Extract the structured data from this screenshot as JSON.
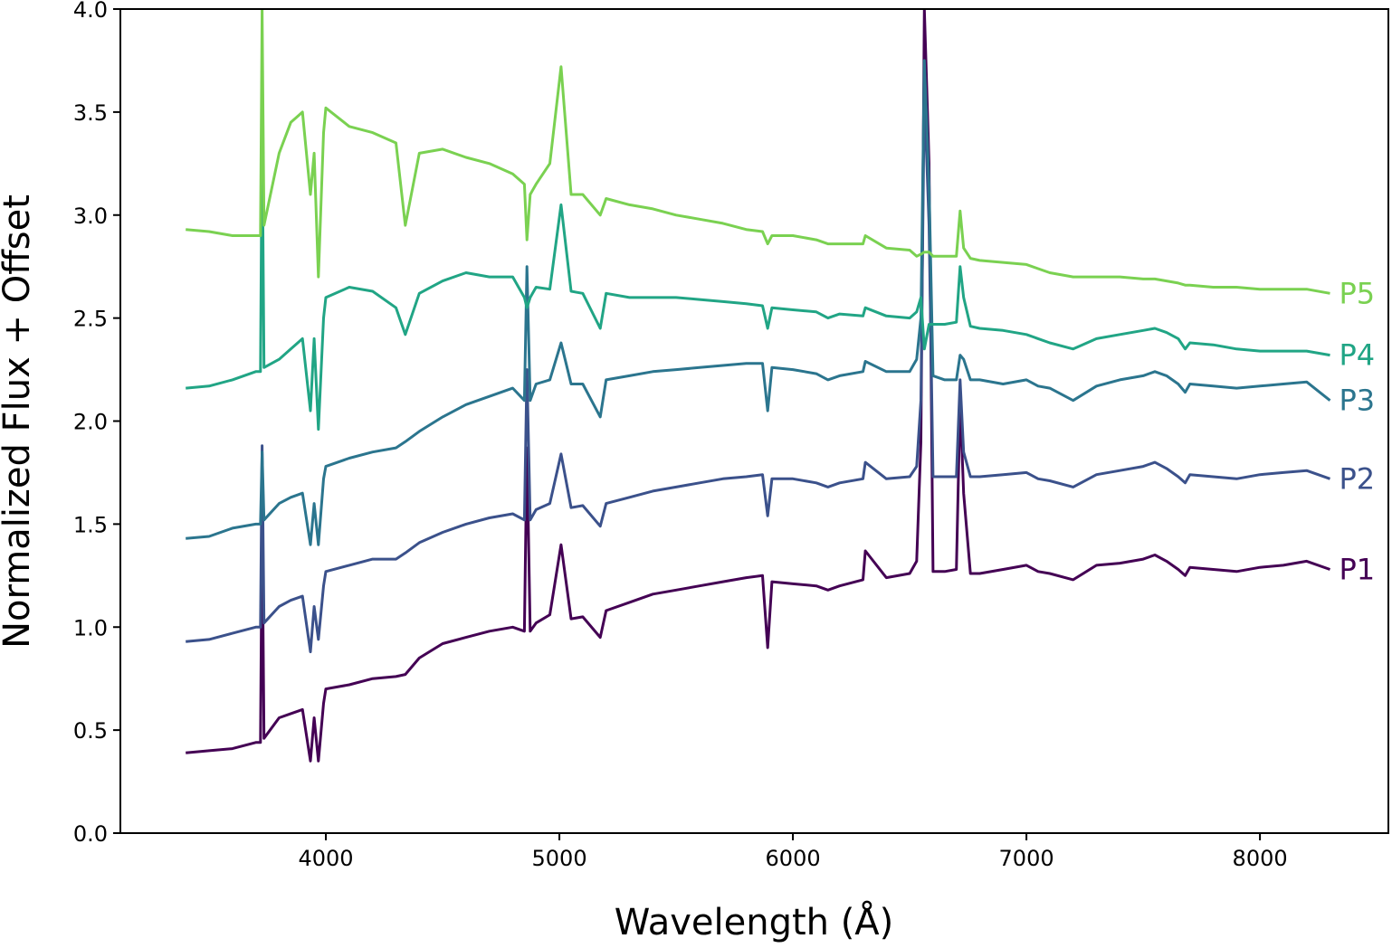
{
  "chart_data": {
    "type": "line",
    "title": "",
    "xlabel": "Wavelength (Å)",
    "ylabel": "Normalized Flux + Offset",
    "xlim": [
      3120,
      8550
    ],
    "ylim": [
      0.0,
      4.0
    ],
    "x_ticks": [
      4000,
      5000,
      6000,
      7000,
      8000
    ],
    "x_tick_labels": [
      "4000",
      "5000",
      "6000",
      "7000",
      "8000"
    ],
    "y_ticks": [
      0.0,
      0.5,
      1.0,
      1.5,
      2.0,
      2.5,
      3.0,
      3.5,
      4.0
    ],
    "y_tick_labels": [
      "0.0",
      "0.5",
      "1.0",
      "1.5",
      "2.0",
      "2.5",
      "3.0",
      "3.5",
      "4.0"
    ],
    "grid": false,
    "series": [
      {
        "name": "P1",
        "color": "#440154",
        "x": [
          3400,
          3500,
          3600,
          3700,
          3720,
          3727,
          3735,
          3800,
          3850,
          3900,
          3934,
          3950,
          3968,
          3990,
          4000,
          4100,
          4200,
          4300,
          4340,
          4400,
          4500,
          4600,
          4700,
          4800,
          4850,
          4861,
          4875,
          4900,
          4959,
          5007,
          5050,
          5100,
          5175,
          5200,
          5300,
          5400,
          5500,
          5600,
          5700,
          5800,
          5870,
          5892,
          5910,
          6000,
          6100,
          6150,
          6200,
          6300,
          6310,
          6400,
          6500,
          6530,
          6548,
          6563,
          6583,
          6600,
          6650,
          6700,
          6716,
          6731,
          6760,
          6800,
          6900,
          7000,
          7050,
          7100,
          7200,
          7300,
          7400,
          7500,
          7550,
          7600,
          7650,
          7680,
          7700,
          7800,
          7900,
          8000,
          8100,
          8200,
          8300
        ],
        "values": [
          0.39,
          0.4,
          0.41,
          0.44,
          0.44,
          1.52,
          0.46,
          0.56,
          0.58,
          0.6,
          0.35,
          0.56,
          0.35,
          0.63,
          0.7,
          0.72,
          0.75,
          0.76,
          0.77,
          0.85,
          0.92,
          0.95,
          0.98,
          1.0,
          0.98,
          1.87,
          0.98,
          1.02,
          1.06,
          1.4,
          1.04,
          1.05,
          0.95,
          1.08,
          1.12,
          1.16,
          1.18,
          1.2,
          1.22,
          1.24,
          1.25,
          0.9,
          1.22,
          1.21,
          1.2,
          1.18,
          1.2,
          1.23,
          1.37,
          1.24,
          1.26,
          1.32,
          1.9,
          4.0,
          3.25,
          1.27,
          1.27,
          1.28,
          2.1,
          1.65,
          1.26,
          1.26,
          1.28,
          1.3,
          1.27,
          1.26,
          1.23,
          1.3,
          1.31,
          1.33,
          1.35,
          1.32,
          1.28,
          1.25,
          1.29,
          1.28,
          1.27,
          1.29,
          1.3,
          1.32,
          1.28
        ]
      },
      {
        "name": "P2",
        "color": "#3b518b",
        "x": [
          3400,
          3500,
          3600,
          3700,
          3720,
          3727,
          3735,
          3800,
          3850,
          3900,
          3934,
          3950,
          3968,
          3990,
          4000,
          4100,
          4200,
          4300,
          4340,
          4400,
          4500,
          4600,
          4700,
          4800,
          4850,
          4861,
          4875,
          4900,
          4959,
          5007,
          5050,
          5100,
          5175,
          5200,
          5300,
          5400,
          5500,
          5600,
          5700,
          5800,
          5870,
          5892,
          5910,
          6000,
          6100,
          6150,
          6200,
          6300,
          6310,
          6400,
          6500,
          6530,
          6548,
          6563,
          6583,
          6600,
          6650,
          6700,
          6716,
          6731,
          6760,
          6800,
          6900,
          7000,
          7050,
          7100,
          7200,
          7300,
          7400,
          7500,
          7550,
          7600,
          7650,
          7680,
          7700,
          7800,
          7900,
          8000,
          8100,
          8200,
          8300
        ],
        "values": [
          0.93,
          0.94,
          0.97,
          1.0,
          1.0,
          1.88,
          1.02,
          1.1,
          1.13,
          1.15,
          0.88,
          1.1,
          0.94,
          1.2,
          1.27,
          1.3,
          1.33,
          1.33,
          1.36,
          1.41,
          1.46,
          1.5,
          1.53,
          1.55,
          1.52,
          2.25,
          1.52,
          1.57,
          1.6,
          1.84,
          1.58,
          1.59,
          1.49,
          1.6,
          1.63,
          1.66,
          1.68,
          1.7,
          1.72,
          1.73,
          1.74,
          1.54,
          1.72,
          1.72,
          1.7,
          1.68,
          1.7,
          1.72,
          1.8,
          1.72,
          1.73,
          1.78,
          2.1,
          3.6,
          2.95,
          1.73,
          1.73,
          1.73,
          2.2,
          1.85,
          1.73,
          1.73,
          1.74,
          1.75,
          1.72,
          1.71,
          1.68,
          1.74,
          1.76,
          1.78,
          1.8,
          1.77,
          1.73,
          1.7,
          1.74,
          1.73,
          1.72,
          1.74,
          1.75,
          1.76,
          1.72
        ]
      },
      {
        "name": "P3",
        "color": "#2b758e",
        "x": [
          3400,
          3500,
          3600,
          3700,
          3720,
          3727,
          3735,
          3800,
          3850,
          3900,
          3934,
          3950,
          3968,
          3990,
          4000,
          4100,
          4200,
          4300,
          4340,
          4400,
          4500,
          4600,
          4700,
          4800,
          4850,
          4861,
          4875,
          4900,
          4959,
          5007,
          5050,
          5100,
          5175,
          5200,
          5300,
          5400,
          5500,
          5600,
          5700,
          5800,
          5870,
          5892,
          5910,
          6000,
          6100,
          6150,
          6200,
          6300,
          6310,
          6400,
          6500,
          6530,
          6548,
          6563,
          6583,
          6600,
          6650,
          6700,
          6716,
          6731,
          6760,
          6800,
          6900,
          7000,
          7050,
          7100,
          7200,
          7300,
          7400,
          7500,
          7550,
          7600,
          7650,
          7680,
          7700,
          7800,
          7900,
          8000,
          8100,
          8200,
          8300
        ],
        "values": [
          1.43,
          1.44,
          1.48,
          1.5,
          1.5,
          1.85,
          1.52,
          1.6,
          1.63,
          1.65,
          1.4,
          1.6,
          1.4,
          1.72,
          1.78,
          1.82,
          1.85,
          1.87,
          1.9,
          1.95,
          2.02,
          2.08,
          2.12,
          2.16,
          2.1,
          2.75,
          2.1,
          2.18,
          2.2,
          2.38,
          2.18,
          2.18,
          2.02,
          2.2,
          2.22,
          2.24,
          2.25,
          2.26,
          2.27,
          2.28,
          2.28,
          2.05,
          2.26,
          2.25,
          2.23,
          2.2,
          2.22,
          2.24,
          2.29,
          2.24,
          2.24,
          2.3,
          2.5,
          3.75,
          3.15,
          2.22,
          2.2,
          2.2,
          2.32,
          2.3,
          2.2,
          2.2,
          2.18,
          2.2,
          2.17,
          2.16,
          2.1,
          2.17,
          2.2,
          2.22,
          2.24,
          2.22,
          2.18,
          2.14,
          2.18,
          2.17,
          2.16,
          2.17,
          2.18,
          2.19,
          2.1
        ]
      },
      {
        "name": "P4",
        "color": "#21a585",
        "x": [
          3400,
          3500,
          3600,
          3700,
          3720,
          3727,
          3735,
          3800,
          3850,
          3900,
          3934,
          3950,
          3968,
          3990,
          4000,
          4100,
          4200,
          4300,
          4340,
          4400,
          4500,
          4600,
          4700,
          4800,
          4850,
          4861,
          4875,
          4900,
          4959,
          5007,
          5050,
          5100,
          5175,
          5200,
          5300,
          5400,
          5500,
          5600,
          5700,
          5800,
          5870,
          5892,
          5910,
          6000,
          6100,
          6150,
          6200,
          6300,
          6310,
          6400,
          6500,
          6530,
          6548,
          6563,
          6583,
          6600,
          6650,
          6700,
          6716,
          6731,
          6760,
          6800,
          6900,
          7000,
          7050,
          7100,
          7200,
          7300,
          7400,
          7500,
          7550,
          7600,
          7650,
          7680,
          7700,
          7800,
          7900,
          8000,
          8100,
          8200,
          8300
        ],
        "values": [
          2.16,
          2.17,
          2.2,
          2.24,
          2.24,
          3.42,
          2.26,
          2.3,
          2.35,
          2.4,
          2.05,
          2.4,
          1.96,
          2.5,
          2.6,
          2.65,
          2.63,
          2.55,
          2.42,
          2.62,
          2.68,
          2.72,
          2.7,
          2.7,
          2.6,
          2.55,
          2.6,
          2.65,
          2.64,
          3.05,
          2.63,
          2.62,
          2.45,
          2.62,
          2.6,
          2.6,
          2.6,
          2.59,
          2.58,
          2.57,
          2.56,
          2.45,
          2.55,
          2.54,
          2.53,
          2.5,
          2.52,
          2.51,
          2.55,
          2.51,
          2.5,
          2.53,
          2.6,
          2.35,
          2.47,
          2.47,
          2.47,
          2.48,
          2.75,
          2.6,
          2.46,
          2.45,
          2.44,
          2.42,
          2.4,
          2.38,
          2.35,
          2.4,
          2.42,
          2.44,
          2.45,
          2.43,
          2.4,
          2.35,
          2.38,
          2.37,
          2.35,
          2.34,
          2.34,
          2.34,
          2.32
        ]
      },
      {
        "name": "P5",
        "color": "#7ad151",
        "x": [
          3400,
          3500,
          3600,
          3700,
          3720,
          3727,
          3735,
          3800,
          3850,
          3900,
          3934,
          3950,
          3968,
          3990,
          4000,
          4100,
          4200,
          4300,
          4340,
          4400,
          4500,
          4600,
          4700,
          4800,
          4850,
          4861,
          4875,
          4900,
          4959,
          5007,
          5050,
          5100,
          5175,
          5200,
          5300,
          5400,
          5500,
          5600,
          5700,
          5800,
          5870,
          5892,
          5910,
          6000,
          6100,
          6150,
          6200,
          6300,
          6310,
          6400,
          6500,
          6530,
          6548,
          6563,
          6583,
          6600,
          6650,
          6700,
          6716,
          6731,
          6760,
          6800,
          6900,
          7000,
          7050,
          7100,
          7200,
          7300,
          7400,
          7500,
          7550,
          7600,
          7650,
          7680,
          7700,
          7800,
          7900,
          8000,
          8100,
          8200,
          8300
        ],
        "values": [
          2.93,
          2.92,
          2.9,
          2.9,
          2.9,
          4.0,
          2.95,
          3.3,
          3.45,
          3.5,
          3.1,
          3.3,
          2.7,
          3.4,
          3.52,
          3.43,
          3.4,
          3.35,
          2.95,
          3.3,
          3.32,
          3.28,
          3.25,
          3.2,
          3.15,
          2.88,
          3.1,
          3.15,
          3.25,
          3.72,
          3.1,
          3.1,
          3.0,
          3.08,
          3.05,
          3.03,
          3.0,
          2.98,
          2.96,
          2.93,
          2.92,
          2.86,
          2.9,
          2.9,
          2.88,
          2.86,
          2.86,
          2.86,
          2.9,
          2.84,
          2.83,
          2.8,
          2.81,
          2.82,
          2.82,
          2.8,
          2.8,
          2.8,
          3.02,
          2.84,
          2.79,
          2.78,
          2.77,
          2.76,
          2.74,
          2.72,
          2.7,
          2.7,
          2.7,
          2.69,
          2.69,
          2.68,
          2.67,
          2.66,
          2.66,
          2.65,
          2.65,
          2.64,
          2.64,
          2.64,
          2.62
        ]
      }
    ]
  }
}
